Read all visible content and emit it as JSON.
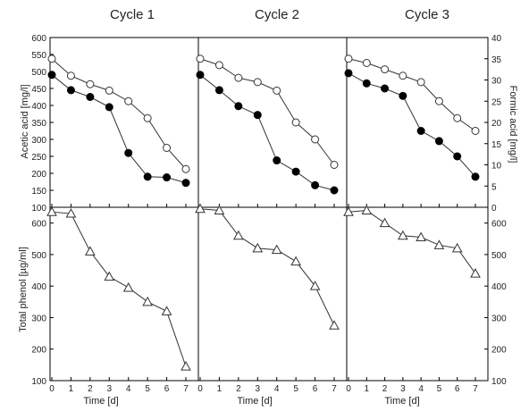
{
  "titles": [
    "Cycle 1",
    "Cycle 2",
    "Cycle 3"
  ],
  "axes": {
    "y_left_top": "Acetic acid [mg/l]",
    "y_right_top": "Formic acid [mg/l]",
    "y_left_bottom": "Total phenol [µg/ml]",
    "x": "Time [d]"
  },
  "chart_data": {
    "type": "line",
    "x": [
      0,
      1,
      2,
      3,
      4,
      5,
      6,
      7
    ],
    "x_ticks": [
      0,
      1,
      2,
      3,
      4,
      5,
      6,
      7
    ],
    "top": {
      "left_axis": {
        "label": "Acetic acid [mg/l]",
        "range": [
          100,
          600
        ],
        "ticks": [
          100,
          150,
          200,
          250,
          300,
          350,
          400,
          450,
          500,
          550,
          600
        ]
      },
      "right_axis": {
        "label": "Formic acid [mg/l]",
        "range": [
          0,
          40
        ],
        "ticks": [
          0,
          5,
          10,
          15,
          20,
          25,
          30,
          35,
          40
        ]
      },
      "cycles": [
        {
          "title": "Cycle 1",
          "acetic_filled": [
            490,
            445,
            425,
            395,
            260,
            190,
            188,
            172
          ],
          "formic_open": [
            35,
            31,
            29,
            27.5,
            25,
            21,
            14,
            9
          ]
        },
        {
          "title": "Cycle 2",
          "acetic_filled": [
            490,
            445,
            398,
            372,
            238,
            205,
            165,
            150
          ],
          "formic_open": [
            35,
            33.5,
            30.5,
            29.5,
            27.5,
            20,
            16,
            10
          ]
        },
        {
          "title": "Cycle 3",
          "acetic_filled": [
            495,
            465,
            450,
            428,
            325,
            295,
            250,
            190
          ],
          "formic_open": [
            35,
            34,
            32.5,
            31,
            29.5,
            25,
            21,
            18
          ]
        }
      ]
    },
    "bottom": {
      "left_axis": {
        "label": "Total phenol [µg/ml]",
        "range": [
          100,
          650
        ],
        "ticks": [
          100,
          200,
          300,
          400,
          500,
          600
        ]
      },
      "right_axis": {
        "range": [
          100,
          650
        ],
        "ticks": [
          100,
          200,
          300,
          400,
          500,
          600
        ]
      },
      "cycles": [
        {
          "title": "Cycle 1",
          "phenol_open_triangle": [
            635,
            630,
            510,
            430,
            395,
            350,
            320,
            145
          ]
        },
        {
          "title": "Cycle 2",
          "phenol_open_triangle": [
            645,
            640,
            560,
            520,
            515,
            478,
            400,
            275
          ]
        },
        {
          "title": "Cycle 3",
          "phenol_open_triangle": [
            635,
            640,
            600,
            560,
            555,
            530,
            520,
            440
          ]
        }
      ]
    },
    "grid": false
  }
}
